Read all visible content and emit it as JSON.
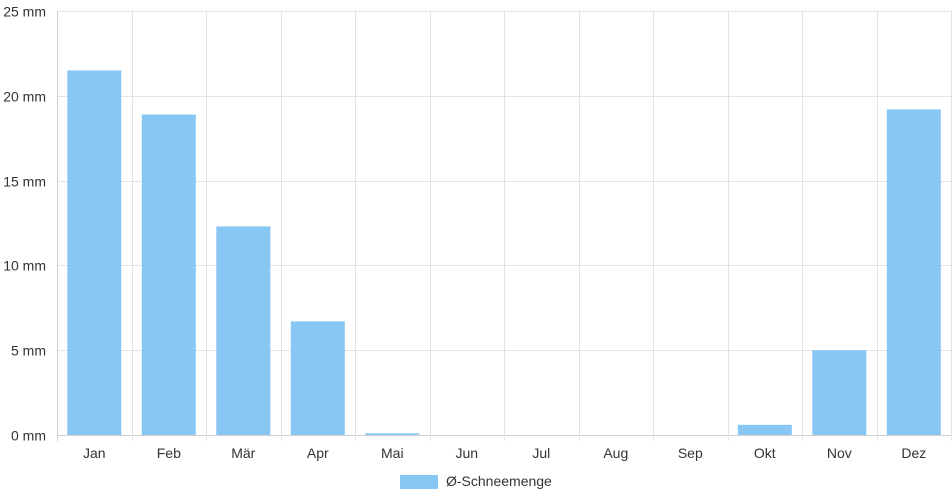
{
  "chart_data": {
    "type": "bar",
    "categories": [
      "Jan",
      "Feb",
      "Mär",
      "Apr",
      "Mai",
      "Jun",
      "Jul",
      "Aug",
      "Sep",
      "Okt",
      "Nov",
      "Dez"
    ],
    "series": [
      {
        "name": "Ø-Schneemenge",
        "values": [
          21.5,
          18.9,
          12.3,
          6.7,
          0.1,
          0,
          0,
          0,
          0,
          0.6,
          5.0,
          19.2
        ],
        "color": "#88c6f3"
      }
    ],
    "yticks": [
      "0 mm",
      "5 mm",
      "10 mm",
      "15 mm",
      "20 mm",
      "25 mm"
    ],
    "ylim": [
      0,
      25
    ],
    "ystep": 5,
    "grid": true,
    "legend": "bottom-center",
    "title": "",
    "xlabel": "",
    "ylabel": ""
  }
}
